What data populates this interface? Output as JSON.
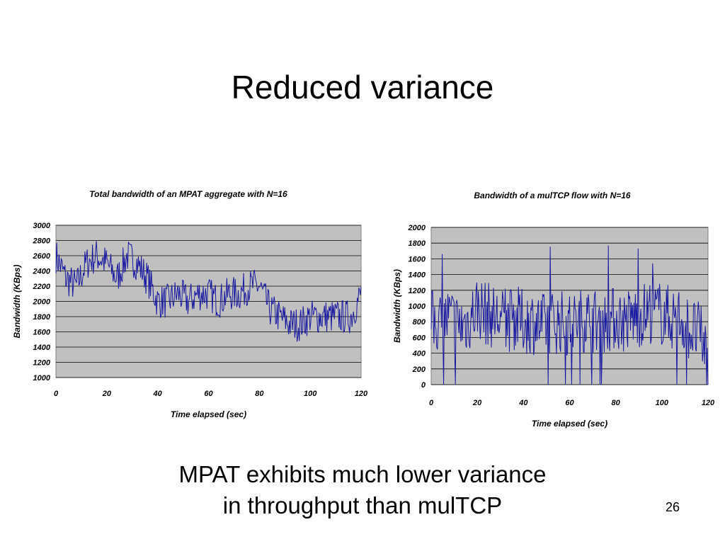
{
  "slide": {
    "title": "Reduced variance",
    "caption_line1": "MPAT exhibits much lower variance",
    "caption_line2": "in throughput than mulTCP",
    "page_number": "26"
  },
  "colors": {
    "plot_bg": "#c0c0c0",
    "series": "#1a1aa0",
    "grid": "#000000"
  },
  "chart_data": [
    {
      "type": "line",
      "title": "Total bandwidth of an MPAT aggregate with N=16",
      "xlabel": "Time elapsed (sec)",
      "ylabel": "Bandwidth (KBps)",
      "xlim": [
        0,
        120
      ],
      "ylim": [
        1000,
        3000
      ],
      "xticks": [
        0,
        20,
        40,
        60,
        80,
        100,
        120
      ],
      "yticks": [
        1000,
        1200,
        1400,
        1600,
        1800,
        2000,
        2200,
        2400,
        2600,
        2800,
        3000
      ],
      "grid": true,
      "series": [
        {
          "x": [
            0,
            4,
            8,
            12,
            16,
            20,
            24,
            28,
            32,
            36,
            40,
            44,
            48,
            52,
            56,
            60,
            64,
            68,
            72,
            76,
            80,
            84,
            88,
            92,
            96,
            100,
            104,
            108,
            112,
            116,
            120
          ],
          "values": [
            2600,
            2300,
            2200,
            2500,
            2600,
            2500,
            2300,
            2600,
            2500,
            2300,
            2000,
            2000,
            2100,
            2000,
            2100,
            2100,
            2000,
            2100,
            2100,
            2200,
            2200,
            1900,
            1800,
            1700,
            1700,
            1800,
            1800,
            1800,
            1800,
            1800,
            2100
          ]
        }
      ]
    },
    {
      "type": "line",
      "title": "Bandwidth of a mulTCP flow with N=16",
      "xlabel": "Time elapsed (sec)",
      "ylabel": "Bandwidth (KBps)",
      "xlim": [
        0,
        120
      ],
      "ylim": [
        0,
        2000
      ],
      "xticks": [
        0,
        20,
        40,
        60,
        80,
        100,
        120
      ],
      "yticks": [
        0,
        200,
        400,
        600,
        800,
        1000,
        1200,
        1400,
        1600,
        1800,
        2000
      ],
      "grid": true,
      "series": [
        {
          "x": [
            0,
            4,
            8,
            12,
            16,
            20,
            24,
            28,
            32,
            36,
            40,
            44,
            48,
            52,
            56,
            60,
            64,
            68,
            72,
            76,
            80,
            84,
            88,
            92,
            96,
            100,
            104,
            108,
            112,
            116,
            120
          ],
          "values": [
            800,
            800,
            850,
            750,
            800,
            1000,
            900,
            850,
            800,
            850,
            800,
            800,
            750,
            800,
            800,
            750,
            800,
            850,
            800,
            800,
            850,
            800,
            850,
            900,
            950,
            900,
            850,
            850,
            700,
            650,
            400
          ]
        }
      ]
    }
  ]
}
